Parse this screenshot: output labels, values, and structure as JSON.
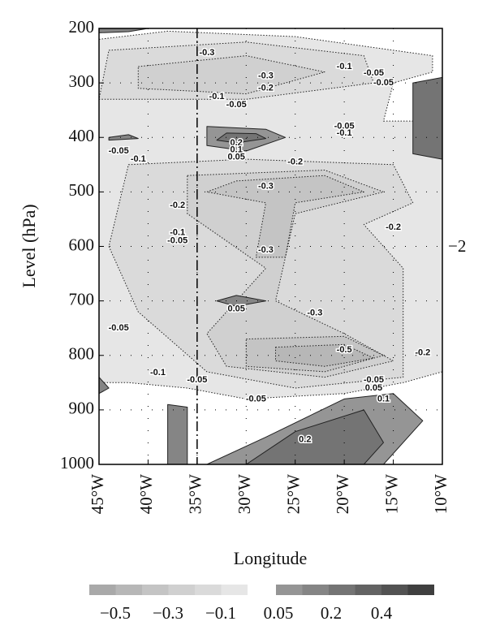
{
  "chart_data": {
    "type": "contour",
    "xlabel": "Longitude",
    "ylabel": "Level (hPa)",
    "annotation": "−2",
    "xlim": [
      -45,
      -10
    ],
    "xticks": [
      {
        "value": -45,
        "label": "45°W"
      },
      {
        "value": -40,
        "label": "40°W"
      },
      {
        "value": -35,
        "label": "35°W"
      },
      {
        "value": -30,
        "label": "30°W"
      },
      {
        "value": -25,
        "label": "25°W"
      },
      {
        "value": -20,
        "label": "20°W"
      },
      {
        "value": -15,
        "label": "15°W"
      },
      {
        "value": -10,
        "label": "10°W"
      }
    ],
    "ylim": [
      1000,
      200
    ],
    "yticks": [
      200,
      300,
      400,
      500,
      600,
      700,
      800,
      900,
      1000
    ],
    "grid": true,
    "reference_line_x": -35,
    "contour_labels": [
      -0.3,
      -0.3,
      -0.1,
      -0.05,
      -0.05,
      -0.2,
      -0.05,
      -0.1,
      0.2,
      0.1,
      0.05,
      -0.05,
      -0.1,
      -0.05,
      -0.1,
      -0.2,
      -0.3,
      -0.2,
      -0.2,
      -0.1,
      -0.05,
      -0.3,
      0.05,
      -0.3,
      -0.05,
      -0.5,
      -0.2,
      -0.1,
      -0.05,
      -0.05,
      0.05,
      0.1,
      -0.05,
      0.2
    ],
    "colorbar": {
      "colors": [
        "#a9a9a9",
        "#b7b7b7",
        "#c4c4c4",
        "#d0d0d0",
        "#dadada",
        "#e6e6e6",
        "#959595",
        "#858585",
        "#747474",
        "#636363",
        "#525252",
        "#3f3f3f"
      ],
      "ticks": [
        {
          "value": -0.5,
          "label": "−0.5"
        },
        {
          "value": -0.3,
          "label": "−0.3"
        },
        {
          "value": -0.1,
          "label": "−0.1"
        },
        {
          "value": 0.05,
          "label": "0.05"
        },
        {
          "value": 0.2,
          "label": "0.2"
        },
        {
          "value": 0.4,
          "label": "0.4"
        }
      ]
    }
  }
}
